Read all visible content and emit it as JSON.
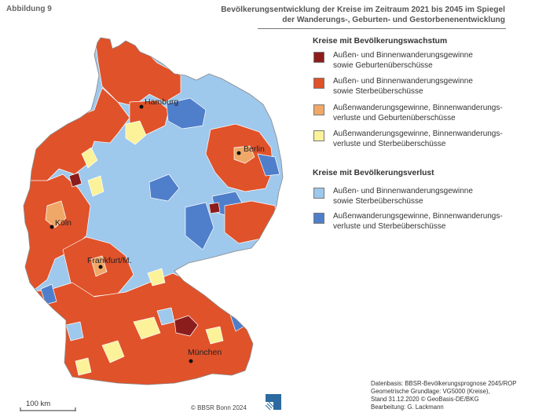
{
  "figure_label": "Abbildung 9",
  "title_lines": [
    "Bevölkerungsentwicklung der Kreise im Zeitraum 2021 bis 2045 im Spiegel",
    "der Wanderungs-, Geburten- und Gestorbenenentwicklung"
  ],
  "legend": {
    "growth_heading": "Kreise mit Bevölkerungswachstum",
    "growth_items": [
      {
        "label": "Außen- und Binnenwanderungsgewinne\nsowie Geburtenüberschüsse",
        "color": "#8c1d1d"
      },
      {
        "label": "Außen- und Binnenwanderungsgewinne\nsowie Sterbeüberschüsse",
        "color": "#e0522a"
      },
      {
        "label": "Außenwanderungsgewinne, Binnenwanderungs-\nverluste und Geburtenüberschüsse",
        "color": "#f0a868"
      },
      {
        "label": "Außenwanderungsgewinne, Binnenwanderungs-\nverluste und Sterbeüberschüsse",
        "color": "#fbf29a"
      }
    ],
    "decline_heading": "Kreise mit Bevölkerungsverlust",
    "decline_items": [
      {
        "label": "Außen- und Binnenwanderungsgewinne\nsowie Sterbeüberschüsse",
        "color": "#9ec8ec"
      },
      {
        "label": "Außenwanderungsgewinne, Binnenwanderungs-\nverluste und Sterbeüberschüsse",
        "color": "#4f7fcb"
      }
    ]
  },
  "cities": [
    "Hamburg",
    "Berlin",
    "Köln",
    "Frankfurt/M.",
    "München"
  ],
  "scale_label": "100 km",
  "copyright": "© BBSR Bonn 2024",
  "credits": "Datenbasis: BBSR-Bevölkerungsprognose 2045/ROP\nGeometrische Grundlage: VG5000 (Kreise),\nStand 31.12.2020 © GeoBasis-DE/BKG\nBearbeitung: G. Lackmann",
  "colors": {
    "dark_red": "#8c1d1d",
    "red": "#e0522a",
    "orange": "#f0a868",
    "yellow": "#fbf29a",
    "light_blue": "#9ec8ec",
    "blue": "#4f7fcb",
    "border": "#ffffff"
  }
}
